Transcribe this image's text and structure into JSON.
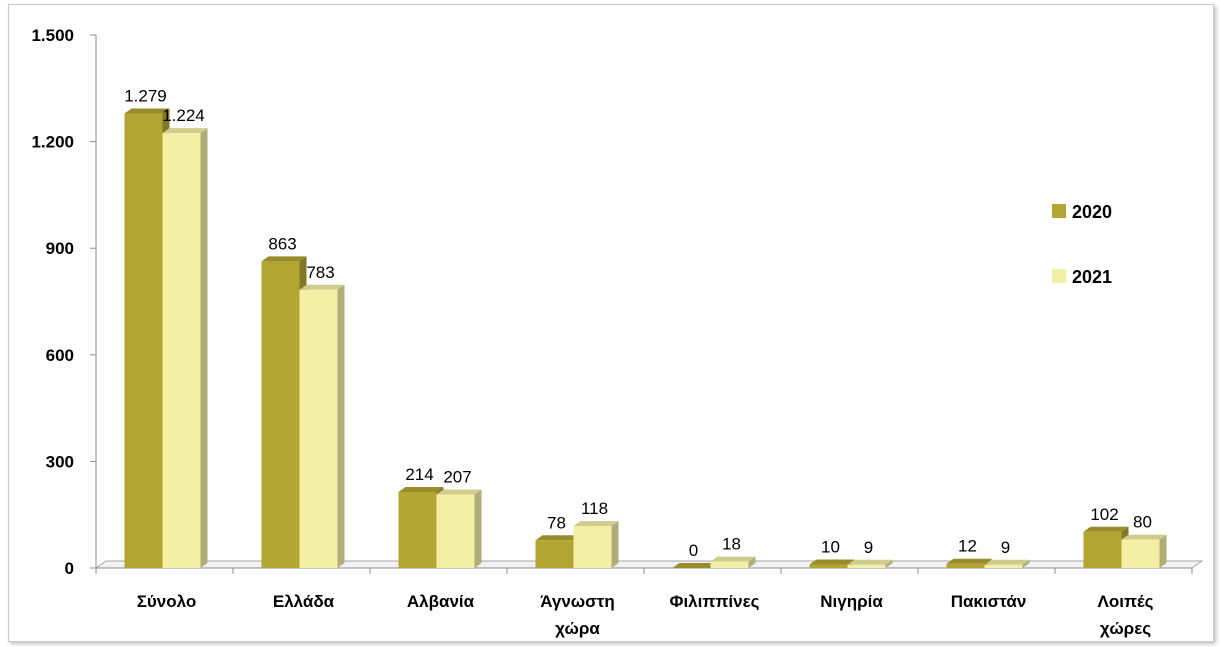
{
  "chart_data": {
    "type": "bar",
    "categories": [
      [
        "Σύνολο"
      ],
      [
        "Ελλάδα"
      ],
      [
        "Αλβανία"
      ],
      [
        "Άγνωστη",
        "χώρα"
      ],
      [
        "Φιλιππίνες"
      ],
      [
        "Νιγηρία"
      ],
      [
        "Πακιστάν"
      ],
      [
        "Λοιπές",
        "χώρες"
      ]
    ],
    "series": [
      {
        "name": "2020",
        "color": "#b3a532",
        "values": [
          1279,
          863,
          214,
          78,
          0,
          10,
          12,
          102
        ],
        "labels": [
          "1.279",
          "863",
          "214",
          "78",
          "0",
          "10",
          "12",
          "102"
        ]
      },
      {
        "name": "2021",
        "color": "#f3f0a6",
        "values": [
          1224,
          783,
          207,
          118,
          18,
          9,
          9,
          80
        ],
        "labels": [
          "1.224",
          "783",
          "207",
          "118",
          "18",
          "9",
          "9",
          "80"
        ]
      }
    ],
    "ylim": [
      0,
      1500
    ],
    "yticks": [
      0,
      300,
      600,
      900,
      1200,
      1500
    ],
    "ytick_labels": [
      "0",
      "300",
      "600",
      "900",
      "1.200",
      "1.500"
    ],
    "legend_position": "right",
    "grid": false
  }
}
